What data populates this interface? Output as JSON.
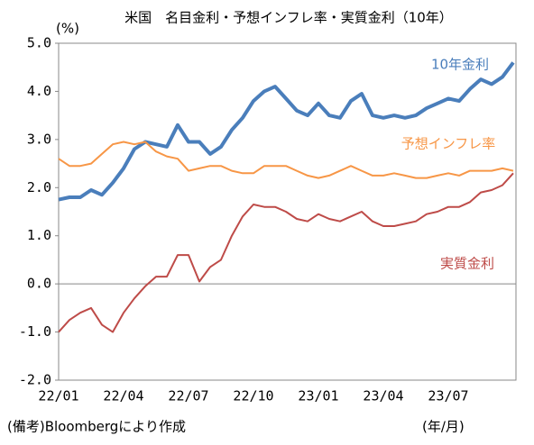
{
  "chart_data": {
    "type": "line",
    "title": "米国　名目金利・予想インフレ率・実質金利（10年）",
    "y_label": "(%)",
    "x_label": "(年/月)",
    "note": "(備考)Bloombergにより作成",
    "categories": [
      "22/01",
      null,
      null,
      null,
      null,
      null,
      "22/04",
      null,
      null,
      null,
      null,
      null,
      "22/07",
      null,
      null,
      null,
      null,
      null,
      "22/10",
      null,
      null,
      null,
      null,
      null,
      "23/01",
      null,
      null,
      null,
      null,
      null,
      "23/04",
      null,
      null,
      null,
      null,
      null,
      "23/07",
      null,
      null,
      null,
      null,
      null,
      null
    ],
    "series": [
      {
        "name": "10年金利",
        "color": "#4a7ebb",
        "values": [
          1.75,
          1.8,
          1.8,
          1.95,
          1.85,
          2.1,
          2.4,
          2.8,
          2.95,
          2.9,
          2.85,
          3.3,
          2.95,
          2.95,
          2.7,
          2.85,
          3.2,
          3.45,
          3.8,
          4.0,
          4.1,
          3.85,
          3.6,
          3.5,
          3.75,
          3.5,
          3.45,
          3.8,
          3.95,
          3.5,
          3.45,
          3.5,
          3.45,
          3.5,
          3.65,
          3.75,
          3.85,
          3.8,
          4.05,
          4.25,
          4.15,
          4.3,
          4.6
        ]
      },
      {
        "name": "予想インフレ率",
        "color": "#f79646",
        "values": [
          2.6,
          2.45,
          2.45,
          2.5,
          2.7,
          2.9,
          2.95,
          2.9,
          2.95,
          2.75,
          2.65,
          2.6,
          2.35,
          2.4,
          2.45,
          2.45,
          2.35,
          2.3,
          2.3,
          2.45,
          2.45,
          2.45,
          2.35,
          2.25,
          2.2,
          2.25,
          2.35,
          2.45,
          2.35,
          2.25,
          2.25,
          2.3,
          2.25,
          2.2,
          2.2,
          2.25,
          2.3,
          2.25,
          2.35,
          2.35,
          2.35,
          2.4,
          2.35
        ]
      },
      {
        "name": "実質金利",
        "color": "#be4b48",
        "values": [
          -1.0,
          -0.75,
          -0.6,
          -0.5,
          -0.85,
          -1.0,
          -0.6,
          -0.3,
          -0.05,
          0.15,
          0.15,
          0.6,
          0.6,
          0.05,
          0.35,
          0.5,
          1.0,
          1.4,
          1.65,
          1.6,
          1.6,
          1.5,
          1.35,
          1.3,
          1.45,
          1.35,
          1.3,
          1.4,
          1.5,
          1.3,
          1.2,
          1.2,
          1.25,
          1.3,
          1.45,
          1.5,
          1.6,
          1.6,
          1.7,
          1.9,
          1.95,
          2.05,
          2.3
        ]
      }
    ],
    "ylim": [
      -2.0,
      5.0
    ],
    "yticks": [
      {
        "value": -2,
        "label": "-2.0"
      },
      {
        "value": -1,
        "label": "-1.0"
      },
      {
        "value": 0,
        "label": "0.0"
      },
      {
        "value": 1,
        "label": "1.0"
      },
      {
        "value": 2,
        "label": "2.0"
      },
      {
        "value": 3,
        "label": "3.0"
      },
      {
        "value": 4,
        "label": "4.0"
      },
      {
        "value": 5,
        "label": "5.0"
      }
    ]
  }
}
